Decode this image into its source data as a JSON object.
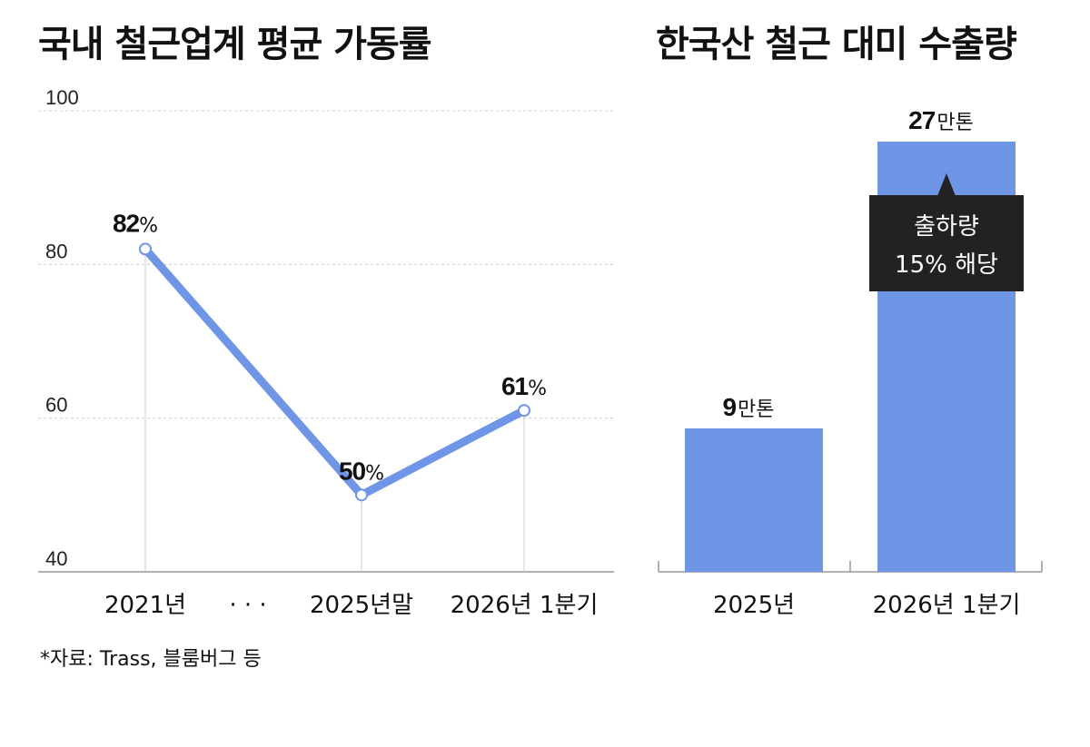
{
  "title_left": "국내 철근업계 평균 가동률",
  "title_right": "한국산 철근 대미 수출량",
  "source": "*자료: Trass, 블룸버그 등",
  "colors": {
    "series": "#6f95e6",
    "axis": "#999999",
    "grid": "#cccccc",
    "callout_bg": "#222222"
  },
  "chart_data": [
    {
      "type": "line",
      "title": "국내 철근업계 평균 가동률",
      "categories": [
        "2021년",
        "2025년말",
        "2026년 1분기"
      ],
      "gap_marker": "· · ·",
      "series": [
        {
          "values": [
            82,
            50,
            61
          ]
        }
      ],
      "value_labels": [
        {
          "num": "82",
          "unit": "%"
        },
        {
          "num": "50",
          "unit": "%"
        },
        {
          "num": "61",
          "unit": "%"
        }
      ],
      "yticks": [
        "100",
        "80",
        "60",
        "40"
      ],
      "ylim": [
        40,
        100
      ],
      "grid": true
    },
    {
      "type": "bar",
      "title": "한국산 철근 대미 수출량",
      "categories": [
        "2025년",
        "2026년 1분기"
      ],
      "values": [
        9,
        27
      ],
      "value_labels": [
        {
          "num": "9",
          "unit": "만톤"
        },
        {
          "num": "27",
          "unit": "만톤"
        }
      ],
      "callout": {
        "line1": "출하량",
        "line2": "15% 해당"
      }
    }
  ]
}
